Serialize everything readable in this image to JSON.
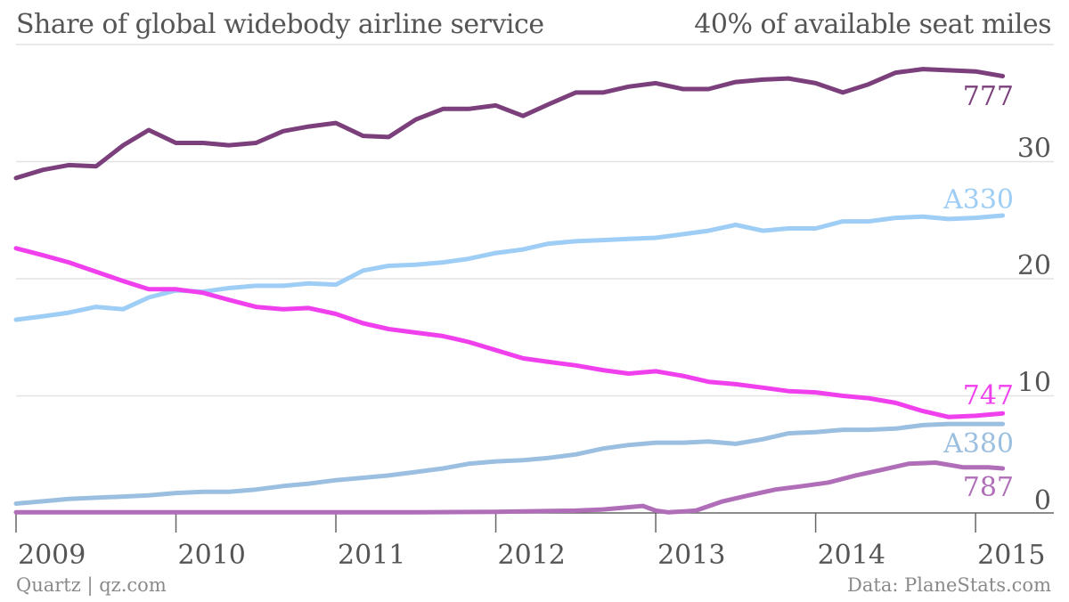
{
  "chart_data": {
    "type": "line",
    "title": "Share of global widebody airline service",
    "ylabel": "40% of available seat miles",
    "ylim": [
      0,
      40
    ],
    "xlim": [
      2009.0,
      2015.25
    ],
    "grid": true,
    "yticks": [
      {
        "value": 10,
        "label": "10"
      },
      {
        "value": 20,
        "label": "20"
      },
      {
        "value": 30,
        "label": "30"
      },
      {
        "value": 0,
        "label": "0"
      }
    ],
    "xticks": [
      {
        "value": 2009,
        "label": "2009"
      },
      {
        "value": 2010,
        "label": "2010"
      },
      {
        "value": 2011,
        "label": "2011"
      },
      {
        "value": 2012,
        "label": "2012"
      },
      {
        "value": 2013,
        "label": "2013"
      },
      {
        "value": 2014,
        "label": "2014"
      },
      {
        "value": 2015,
        "label": "2015"
      }
    ],
    "series": [
      {
        "name": "777",
        "color": "#7b3f7b",
        "x": [
          2009.0,
          2009.17,
          2009.33,
          2009.5,
          2009.67,
          2009.83,
          2010.0,
          2010.17,
          2010.33,
          2010.5,
          2010.67,
          2010.83,
          2011.0,
          2011.17,
          2011.33,
          2011.5,
          2011.67,
          2011.83,
          2012.0,
          2012.17,
          2012.33,
          2012.5,
          2012.67,
          2012.83,
          2013.0,
          2013.17,
          2013.33,
          2013.5,
          2013.67,
          2013.83,
          2014.0,
          2014.17,
          2014.33,
          2014.5,
          2014.67,
          2014.83,
          2015.0,
          2015.17
        ],
        "y": [
          28.6,
          29.3,
          29.7,
          29.6,
          31.4,
          32.7,
          31.6,
          31.6,
          31.4,
          31.6,
          32.6,
          33.0,
          33.3,
          32.2,
          32.1,
          33.6,
          34.5,
          34.5,
          34.8,
          33.9,
          34.9,
          35.9,
          35.9,
          36.4,
          36.7,
          36.2,
          36.2,
          36.8,
          37.0,
          37.1,
          36.7,
          35.9,
          36.6,
          37.6,
          37.9,
          37.8,
          37.7,
          37.3
        ]
      },
      {
        "name": "A330",
        "color": "#9ecdf5",
        "x": [
          2009.0,
          2009.17,
          2009.33,
          2009.5,
          2009.67,
          2009.83,
          2010.0,
          2010.17,
          2010.33,
          2010.5,
          2010.67,
          2010.83,
          2011.0,
          2011.17,
          2011.33,
          2011.5,
          2011.67,
          2011.83,
          2012.0,
          2012.17,
          2012.33,
          2012.5,
          2012.67,
          2012.83,
          2013.0,
          2013.17,
          2013.33,
          2013.5,
          2013.67,
          2013.83,
          2014.0,
          2014.17,
          2014.33,
          2014.5,
          2014.67,
          2014.83,
          2015.0,
          2015.17
        ],
        "y": [
          16.5,
          16.8,
          17.1,
          17.6,
          17.4,
          18.4,
          19.0,
          18.9,
          19.2,
          19.4,
          19.4,
          19.6,
          19.5,
          20.7,
          21.1,
          21.2,
          21.4,
          21.7,
          22.2,
          22.5,
          23.0,
          23.2,
          23.3,
          23.4,
          23.5,
          23.8,
          24.1,
          24.6,
          24.1,
          24.3,
          24.3,
          24.9,
          24.9,
          25.2,
          25.3,
          25.1,
          25.2,
          25.4
        ]
      },
      {
        "name": "747",
        "color": "#f040ee",
        "x": [
          2009.0,
          2009.17,
          2009.33,
          2009.5,
          2009.67,
          2009.83,
          2010.0,
          2010.17,
          2010.33,
          2010.5,
          2010.67,
          2010.83,
          2011.0,
          2011.17,
          2011.33,
          2011.5,
          2011.67,
          2011.83,
          2012.0,
          2012.17,
          2012.33,
          2012.5,
          2012.67,
          2012.83,
          2013.0,
          2013.17,
          2013.33,
          2013.5,
          2013.67,
          2013.83,
          2014.0,
          2014.17,
          2014.33,
          2014.5,
          2014.67,
          2014.83,
          2015.0,
          2015.17
        ],
        "y": [
          22.6,
          22.0,
          21.4,
          20.6,
          19.8,
          19.1,
          19.1,
          18.8,
          18.2,
          17.6,
          17.4,
          17.5,
          17.0,
          16.2,
          15.7,
          15.4,
          15.1,
          14.6,
          13.9,
          13.2,
          12.9,
          12.6,
          12.2,
          11.9,
          12.1,
          11.7,
          11.2,
          11.0,
          10.7,
          10.4,
          10.3,
          10.0,
          9.8,
          9.4,
          8.7,
          8.2,
          8.3,
          8.5
        ]
      },
      {
        "name": "A380",
        "color": "#9bbfe0",
        "x": [
          2009.0,
          2009.17,
          2009.33,
          2009.5,
          2009.67,
          2009.83,
          2010.0,
          2010.17,
          2010.33,
          2010.5,
          2010.67,
          2010.83,
          2011.0,
          2011.17,
          2011.33,
          2011.5,
          2011.67,
          2011.83,
          2012.0,
          2012.17,
          2012.33,
          2012.5,
          2012.67,
          2012.83,
          2013.0,
          2013.17,
          2013.33,
          2013.5,
          2013.67,
          2013.83,
          2014.0,
          2014.17,
          2014.33,
          2014.5,
          2014.67,
          2014.83,
          2015.0,
          2015.17
        ],
        "y": [
          0.8,
          1.0,
          1.2,
          1.3,
          1.4,
          1.5,
          1.7,
          1.8,
          1.8,
          2.0,
          2.3,
          2.5,
          2.8,
          3.0,
          3.2,
          3.5,
          3.8,
          4.2,
          4.4,
          4.5,
          4.7,
          5.0,
          5.5,
          5.8,
          6.0,
          6.0,
          6.1,
          5.9,
          6.3,
          6.8,
          6.9,
          7.1,
          7.1,
          7.2,
          7.5,
          7.6,
          7.6,
          7.6
        ]
      },
      {
        "name": "787",
        "color": "#b06eb8",
        "x": [
          2009.0,
          2009.5,
          2010.0,
          2010.5,
          2011.0,
          2011.5,
          2012.0,
          2012.5,
          2012.67,
          2012.92,
          2013.0,
          2013.08,
          2013.25,
          2013.42,
          2013.58,
          2013.75,
          2013.92,
          2014.08,
          2014.25,
          2014.42,
          2014.58,
          2014.75,
          2014.92,
          2015.08,
          2015.17
        ],
        "y": [
          0.05,
          0.05,
          0.05,
          0.05,
          0.05,
          0.05,
          0.1,
          0.2,
          0.3,
          0.6,
          0.2,
          0.05,
          0.2,
          1.0,
          1.5,
          2.0,
          2.3,
          2.6,
          3.2,
          3.7,
          4.2,
          4.3,
          3.9,
          3.9,
          3.8
        ]
      }
    ],
    "series_labels": [
      {
        "series": "777",
        "text": "777"
      },
      {
        "series": "A330",
        "text": "A330"
      },
      {
        "series": "747",
        "text": "747"
      },
      {
        "series": "A380",
        "text": "A380"
      },
      {
        "series": "787",
        "text": "787"
      }
    ]
  },
  "footer": {
    "credit": "Quartz | qz.com",
    "source": "Data: PlaneStats.com"
  }
}
